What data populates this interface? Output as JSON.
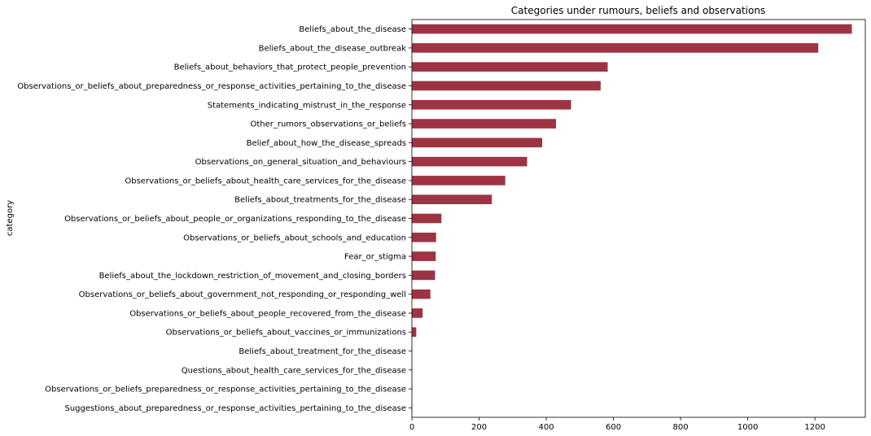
{
  "chart_data": {
    "type": "bar",
    "orientation": "horizontal",
    "title": "Categories under rumours, beliefs and observations",
    "ylabel": "category",
    "xlabel": "",
    "xlim": [
      0,
      1350
    ],
    "x_ticks": [
      0,
      200,
      400,
      600,
      800,
      1000,
      1200
    ],
    "grid": false,
    "bar_color": "#9e3344",
    "categories": [
      "Beliefs_about_the_disease",
      "Beliefs_about_the_disease_outbreak",
      "Beliefs_about_behaviors_that_protect_people_prevention",
      "Observations_or_beliefs_about_preparedness_or_response_activities_pertaining_to_the_disease",
      "Statements_indicating_mistrust_in_the_response",
      "Other_rumors_observations_or_beliefs",
      "Belief_about_how_the_disease_spreads",
      "Observations_on_general_situation_and_behaviours",
      "Observations_or_beliefs_about_health_care_services_for_the_disease",
      "Beliefs_about_treatments_for_the_disease",
      "Observations_or_beliefs_about_people_or_organizations_responding_to_the_disease",
      "Observations_or_beliefs_about_schools_and_education",
      "Fear_or_stigma",
      "Beliefs_about_the_lockdown_restriction_of_movement_and_closing_borders",
      "Observations_or_beliefs_about_government_not_responding_or_responding_well",
      "Observations_or_beliefs_about_people_recovered_from_the_disease",
      "Observations_or_beliefs_about_vaccines_or_immunizations",
      "Beliefs_about_treatment_for_the_disease",
      "Questions_about_health_care_services_for_the_disease",
      "Observations_or_beliefs_preparedness_or_response_activities_pertaining_to_the_disease",
      "Suggestions_about_preparedness_or_response_activities_pertaining_to_the_disease"
    ],
    "values": [
      1310,
      1210,
      583,
      562,
      474,
      429,
      388,
      343,
      278,
      238,
      88,
      72,
      71,
      69,
      55,
      32,
      13,
      1,
      1,
      1,
      1
    ]
  }
}
